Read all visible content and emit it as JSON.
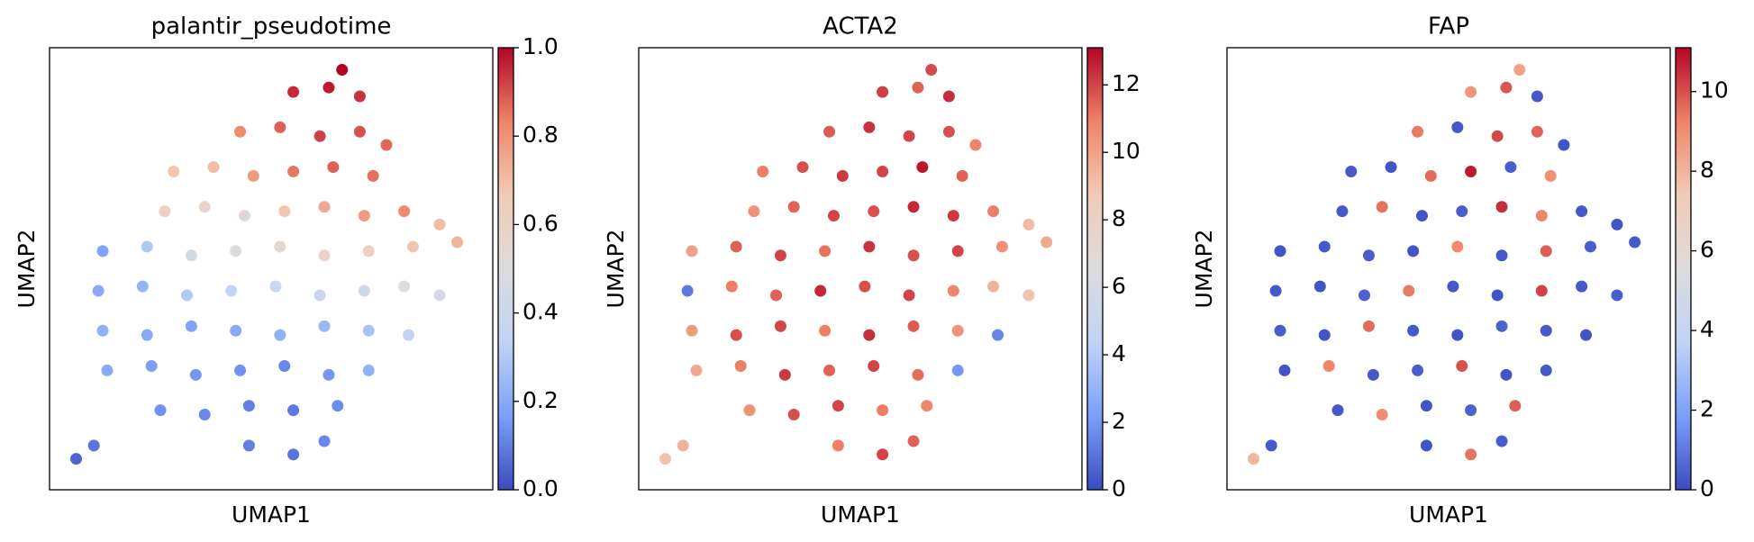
{
  "chart_data": [
    {
      "type": "scatter",
      "title": "palantir_pseudotime",
      "xlabel": "UMAP1",
      "ylabel": "UMAP2",
      "xlim": [
        0,
        10
      ],
      "ylim": [
        0,
        10
      ],
      "x": [
        0.6,
        1.0,
        4.5,
        5.5,
        6.2,
        2.5,
        3.5,
        4.5,
        5.5,
        6.5,
        1.3,
        2.3,
        3.3,
        4.3,
        5.3,
        6.3,
        7.2,
        1.2,
        2.2,
        3.2,
        4.2,
        5.2,
        6.2,
        7.2,
        8.1,
        1.1,
        2.1,
        3.1,
        4.1,
        5.1,
        6.1,
        7.1,
        8.0,
        8.8,
        1.2,
        2.2,
        3.2,
        4.2,
        5.2,
        6.2,
        7.2,
        8.2,
        9.2,
        2.6,
        3.5,
        4.4,
        5.3,
        6.2,
        7.1,
        8.0,
        8.8,
        2.8,
        3.7,
        4.6,
        5.5,
        6.4,
        7.3,
        4.3,
        5.2,
        6.1,
        7.0,
        7.6,
        5.5,
        6.3,
        7.0,
        6.6
      ],
      "values": [
        0.7,
        1.0,
        1.0,
        0.8,
        1.1,
        1.8,
        1.7,
        1.9,
        1.8,
        1.9,
        2.7,
        2.8,
        2.6,
        2.7,
        2.8,
        2.6,
        2.7,
        3.6,
        3.5,
        3.7,
        3.6,
        3.5,
        3.7,
        3.6,
        3.5,
        4.5,
        4.6,
        4.4,
        4.5,
        4.6,
        4.4,
        4.5,
        4.6,
        4.4,
        5.4,
        5.5,
        5.3,
        5.4,
        5.5,
        5.3,
        5.4,
        5.5,
        5.6,
        6.3,
        6.4,
        6.2,
        6.3,
        6.4,
        6.2,
        6.3,
        6.0,
        7.2,
        7.3,
        7.1,
        7.2,
        7.3,
        7.1,
        8.1,
        8.2,
        8.0,
        8.1,
        7.8,
        9.0,
        9.1,
        8.9,
        9.5
      ],
      "color_values": [
        0.05,
        0.08,
        0.1,
        0.08,
        0.12,
        0.14,
        0.12,
        0.1,
        0.09,
        0.13,
        0.2,
        0.17,
        0.15,
        0.14,
        0.12,
        0.15,
        0.22,
        0.22,
        0.2,
        0.18,
        0.2,
        0.22,
        0.24,
        0.28,
        0.35,
        0.2,
        0.23,
        0.3,
        0.35,
        0.4,
        0.38,
        0.42,
        0.5,
        0.45,
        0.18,
        0.3,
        0.45,
        0.5,
        0.55,
        0.6,
        0.62,
        0.68,
        0.72,
        0.62,
        0.58,
        0.55,
        0.68,
        0.75,
        0.78,
        0.82,
        0.7,
        0.68,
        0.7,
        0.78,
        0.85,
        0.88,
        0.86,
        0.82,
        0.88,
        0.92,
        0.9,
        0.87,
        0.95,
        0.97,
        0.94,
        1.0
      ],
      "colorbar": {
        "lim": [
          0,
          1
        ],
        "ticks": [
          {
            "value": 0,
            "label": "0.0"
          },
          {
            "value": 0.2,
            "label": "0.2"
          },
          {
            "value": 0.4,
            "label": "0.4"
          },
          {
            "value": 0.6,
            "label": "0.6"
          },
          {
            "value": 0.8,
            "label": "0.8"
          },
          {
            "value": 1,
            "label": "1.0"
          }
        ]
      },
      "colormap": [
        "#3b4cc0",
        "#7b9ff9",
        "#c0d4f5",
        "#dddcdc",
        "#f2cbb7",
        "#ee8468",
        "#b40426"
      ]
    },
    {
      "type": "scatter",
      "title": "ACTA2",
      "xlabel": "UMAP1",
      "ylabel": "UMAP2",
      "xlim": [
        0,
        10
      ],
      "ylim": [
        0,
        10
      ],
      "x": [
        0.6,
        1.0,
        4.5,
        5.5,
        6.2,
        2.5,
        3.5,
        4.5,
        5.5,
        6.5,
        1.3,
        2.3,
        3.3,
        4.3,
        5.3,
        6.3,
        7.2,
        1.2,
        2.2,
        3.2,
        4.2,
        5.2,
        6.2,
        7.2,
        8.1,
        1.1,
        2.1,
        3.1,
        4.1,
        5.1,
        6.1,
        7.1,
        8.0,
        8.8,
        1.2,
        2.2,
        3.2,
        4.2,
        5.2,
        6.2,
        7.2,
        8.2,
        9.2,
        2.6,
        3.5,
        4.4,
        5.3,
        6.2,
        7.1,
        8.0,
        8.8,
        2.8,
        3.7,
        4.6,
        5.5,
        6.4,
        7.3,
        4.3,
        5.2,
        6.1,
        7.0,
        7.6,
        5.5,
        6.3,
        7.0,
        6.6
      ],
      "values": [
        0.7,
        1.0,
        1.0,
        0.8,
        1.1,
        1.8,
        1.7,
        1.9,
        1.8,
        1.9,
        2.7,
        2.8,
        2.6,
        2.7,
        2.8,
        2.6,
        2.7,
        3.6,
        3.5,
        3.7,
        3.6,
        3.5,
        3.7,
        3.6,
        3.5,
        4.5,
        4.6,
        4.4,
        4.5,
        4.6,
        4.4,
        4.5,
        4.6,
        4.4,
        5.4,
        5.5,
        5.3,
        5.4,
        5.5,
        5.3,
        5.4,
        5.5,
        5.6,
        6.3,
        6.4,
        6.2,
        6.3,
        6.4,
        6.2,
        6.3,
        6.0,
        7.2,
        7.3,
        7.1,
        7.2,
        7.3,
        7.1,
        8.1,
        8.2,
        8.0,
        8.1,
        7.8,
        9.0,
        9.1,
        8.9,
        9.5
      ],
      "color_values": [
        9,
        9.5,
        11,
        12,
        11.5,
        10.5,
        11.8,
        12,
        11,
        10.8,
        9.8,
        11,
        12.2,
        11.5,
        12,
        11.3,
        2,
        10.2,
        11.8,
        12,
        11,
        12.4,
        11.6,
        10.5,
        1.5,
        1.2,
        11,
        11.5,
        12.5,
        11.8,
        12,
        10.8,
        9.5,
        9,
        10,
        11.5,
        12,
        11.2,
        12.3,
        11.8,
        12,
        10.5,
        9.8,
        10.5,
        11.5,
        12,
        11.8,
        12.5,
        12.2,
        11,
        9.2,
        11,
        11.8,
        12.2,
        12,
        12.8,
        11.5,
        11.6,
        12.3,
        12,
        11.8,
        10.9,
        12.1,
        11.5,
        12.4,
        11.9
      ],
      "colorbar": {
        "lim": [
          0,
          13.1
        ],
        "ticks": [
          0,
          2,
          4,
          6,
          8,
          10,
          12
        ]
      },
      "colormap": [
        "#3b4cc0",
        "#7b9ff9",
        "#c0d4f5",
        "#dddcdc",
        "#f2cbb7",
        "#ee8468",
        "#b40426"
      ]
    },
    {
      "type": "scatter",
      "title": "FAP",
      "xlabel": "UMAP1",
      "ylabel": "UMAP2",
      "xlim": [
        0,
        10
      ],
      "ylim": [
        0,
        10
      ],
      "x": [
        0.6,
        1.0,
        4.5,
        5.5,
        6.2,
        2.5,
        3.5,
        4.5,
        5.5,
        6.5,
        1.3,
        2.3,
        3.3,
        4.3,
        5.3,
        6.3,
        7.2,
        1.2,
        2.2,
        3.2,
        4.2,
        5.2,
        6.2,
        7.2,
        8.1,
        1.1,
        2.1,
        3.1,
        4.1,
        5.1,
        6.1,
        7.1,
        8.0,
        8.8,
        1.2,
        2.2,
        3.2,
        4.2,
        5.2,
        6.2,
        7.2,
        8.2,
        9.2,
        2.6,
        3.5,
        4.4,
        5.3,
        6.2,
        7.1,
        8.0,
        8.8,
        2.8,
        3.7,
        4.6,
        5.5,
        6.4,
        7.3,
        4.3,
        5.2,
        6.1,
        7.0,
        7.6,
        5.5,
        6.3,
        7.0,
        6.6
      ],
      "values": [
        0.7,
        1.0,
        1.0,
        0.8,
        1.1,
        1.8,
        1.7,
        1.9,
        1.8,
        1.9,
        2.7,
        2.8,
        2.6,
        2.7,
        2.8,
        2.6,
        2.7,
        3.6,
        3.5,
        3.7,
        3.6,
        3.5,
        3.7,
        3.6,
        3.5,
        4.5,
        4.6,
        4.4,
        4.5,
        4.6,
        4.4,
        4.5,
        4.6,
        4.4,
        5.4,
        5.5,
        5.3,
        5.4,
        5.5,
        5.3,
        5.4,
        5.5,
        5.6,
        6.3,
        6.4,
        6.2,
        6.3,
        6.4,
        6.2,
        6.3,
        6.0,
        7.2,
        7.3,
        7.1,
        7.2,
        7.3,
        7.1,
        8.1,
        8.2,
        8.0,
        8.1,
        7.8,
        9.0,
        9.1,
        8.9,
        9.5
      ],
      "color_values": [
        8,
        0.3,
        0.2,
        9.5,
        0.4,
        0.3,
        9,
        0.2,
        0.5,
        9.8,
        0.2,
        9.2,
        0.3,
        0.4,
        10,
        0.2,
        0.3,
        0.4,
        0.2,
        9.6,
        0.3,
        0.2,
        0.5,
        0.3,
        0.2,
        0.3,
        0.2,
        0.5,
        9.4,
        0.3,
        0.2,
        10.2,
        0.3,
        0.4,
        0.2,
        0.3,
        0.4,
        0.2,
        9.1,
        0.3,
        9.8,
        0.4,
        0.3,
        0.3,
        9.5,
        0.2,
        0.4,
        10.5,
        9.2,
        0.3,
        0.2,
        0.3,
        0.2,
        9.6,
        10.8,
        0.4,
        8.9,
        9.4,
        0.3,
        10.1,
        9.7,
        0.2,
        8.8,
        9.9,
        0.3,
        8.5
      ],
      "colorbar": {
        "lim": [
          0,
          11.1
        ],
        "ticks": [
          0,
          2,
          4,
          6,
          8,
          10
        ]
      },
      "colormap": [
        "#3b4cc0",
        "#7b9ff9",
        "#c0d4f5",
        "#dddcdc",
        "#f2cbb7",
        "#ee8468",
        "#b40426"
      ]
    }
  ]
}
